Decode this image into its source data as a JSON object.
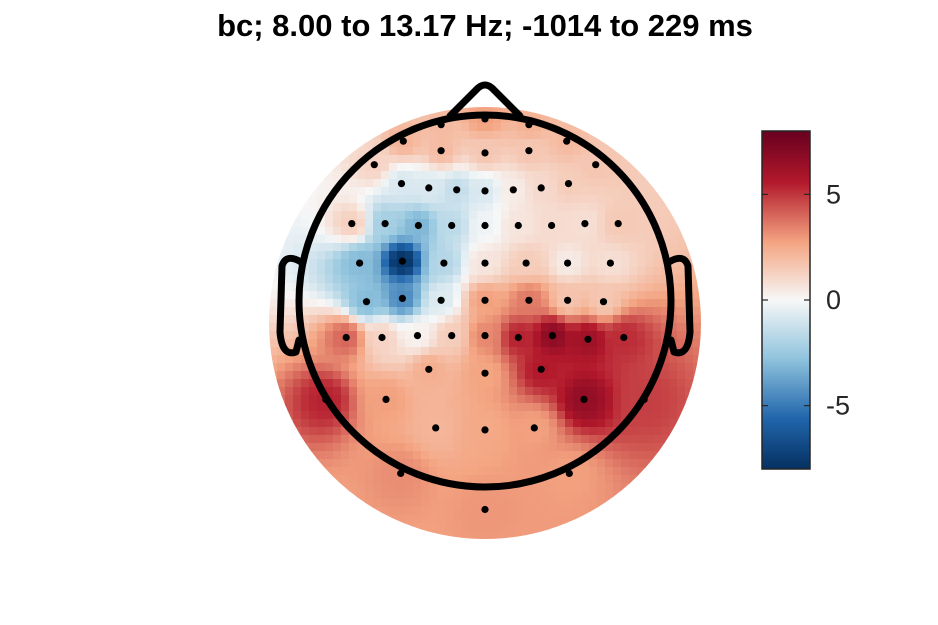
{
  "chart_data": {
    "type": "heatmap",
    "subtype": "eeg-topographic-map",
    "title": "bc; 8.00 to 13.17 Hz; -1014 to 229 ms",
    "colormap": "diverging red-white-blue (reversed)",
    "colors": {
      "min": "#053061",
      "low": "#2166ac",
      "midlow": "#92c5de",
      "zero": "#f7f7f7",
      "midhigh": "#f4a582",
      "high": "#b2182b",
      "max": "#67001f"
    },
    "clim": [
      -8,
      8
    ],
    "colorbar": {
      "ticks": [
        5,
        0,
        -5
      ],
      "tick_labels": [
        "5",
        "0",
        "-5"
      ],
      "position": "right"
    },
    "electrodes": [
      {
        "x": -0.236,
        "y": 0.948,
        "v": 2.0
      },
      {
        "x": 0.0,
        "y": 0.979,
        "v": 2.8
      },
      {
        "x": 0.236,
        "y": 0.948,
        "v": 2.3
      },
      {
        "x": -0.439,
        "y": 0.859,
        "v": 2.2
      },
      {
        "x": -0.236,
        "y": 0.808,
        "v": 2.0
      },
      {
        "x": 0.0,
        "y": 0.796,
        "v": 1.6
      },
      {
        "x": 0.236,
        "y": 0.808,
        "v": 1.6
      },
      {
        "x": 0.439,
        "y": 0.859,
        "v": 2.0
      },
      {
        "x": -0.595,
        "y": 0.733,
        "v": 1.2
      },
      {
        "x": 0.595,
        "y": 0.733,
        "v": 1.6
      },
      {
        "x": -0.449,
        "y": 0.631,
        "v": -0.8
      },
      {
        "x": -0.302,
        "y": 0.608,
        "v": -0.8
      },
      {
        "x": -0.152,
        "y": 0.598,
        "v": -1.4
      },
      {
        "x": 0.0,
        "y": 0.592,
        "v": -0.8
      },
      {
        "x": 0.152,
        "y": 0.598,
        "v": 0.4
      },
      {
        "x": 0.302,
        "y": 0.608,
        "v": 1.0
      },
      {
        "x": 0.449,
        "y": 0.631,
        "v": 1.4
      },
      {
        "x": -0.716,
        "y": 0.416,
        "v": 1.3
      },
      {
        "x": -0.537,
        "y": 0.416,
        "v": -2.2
      },
      {
        "x": -0.358,
        "y": 0.406,
        "v": -3.2
      },
      {
        "x": -0.179,
        "y": 0.406,
        "v": -1.6
      },
      {
        "x": 0.0,
        "y": 0.406,
        "v": -0.2
      },
      {
        "x": 0.179,
        "y": 0.406,
        "v": 0.6
      },
      {
        "x": 0.358,
        "y": 0.406,
        "v": 0.9
      },
      {
        "x": 0.537,
        "y": 0.416,
        "v": 0.8
      },
      {
        "x": 0.716,
        "y": 0.416,
        "v": 1.5
      },
      {
        "x": -0.674,
        "y": 0.204,
        "v": -3.0
      },
      {
        "x": -0.444,
        "y": 0.214,
        "v": -7.8
      },
      {
        "x": -0.221,
        "y": 0.204,
        "v": -1.8
      },
      {
        "x": 0.0,
        "y": 0.204,
        "v": 0.6
      },
      {
        "x": 0.221,
        "y": 0.204,
        "v": 1.4
      },
      {
        "x": 0.444,
        "y": 0.204,
        "v": 0.4
      },
      {
        "x": 0.674,
        "y": 0.204,
        "v": 0.8
      },
      {
        "x": -0.637,
        "y": -0.004,
        "v": -3.0
      },
      {
        "x": -0.444,
        "y": 0.014,
        "v": -4.5
      },
      {
        "x": -0.236,
        "y": 0.004,
        "v": -0.7
      },
      {
        "x": 0.0,
        "y": 0.004,
        "v": 2.8
      },
      {
        "x": 0.236,
        "y": 0.004,
        "v": 3.6
      },
      {
        "x": 0.444,
        "y": 0.004,
        "v": 1.7
      },
      {
        "x": 0.637,
        "y": -0.004,
        "v": 1.6
      },
      {
        "x": -0.746,
        "y": -0.196,
        "v": 4.0
      },
      {
        "x": -0.554,
        "y": -0.196,
        "v": 1.2
      },
      {
        "x": -0.363,
        "y": -0.186,
        "v": 0.2
      },
      {
        "x": -0.179,
        "y": -0.186,
        "v": 1.4
      },
      {
        "x": 0.0,
        "y": -0.186,
        "v": 3.3
      },
      {
        "x": 0.179,
        "y": -0.196,
        "v": 5.4
      },
      {
        "x": 0.363,
        "y": -0.186,
        "v": 6.8
      },
      {
        "x": 0.554,
        "y": -0.206,
        "v": 6.2
      },
      {
        "x": 0.746,
        "y": -0.196,
        "v": 5.2
      },
      {
        "x": -0.302,
        "y": -0.367,
        "v": 2.4
      },
      {
        "x": 0.0,
        "y": -0.388,
        "v": 2.7
      },
      {
        "x": 0.302,
        "y": -0.367,
        "v": 5.6
      },
      {
        "x": -0.856,
        "y": -0.529,
        "v": 5.4
      },
      {
        "x": -0.532,
        "y": -0.529,
        "v": 2.8
      },
      {
        "x": 0.532,
        "y": -0.529,
        "v": 6.6
      },
      {
        "x": 0.856,
        "y": -0.529,
        "v": 4.8
      },
      {
        "x": -0.265,
        "y": -0.682,
        "v": 2.2
      },
      {
        "x": 0.0,
        "y": -0.693,
        "v": 2.6
      },
      {
        "x": 0.265,
        "y": -0.682,
        "v": 2.8
      },
      {
        "x": -0.453,
        "y": -0.927,
        "v": 3.2
      },
      {
        "x": 0.453,
        "y": -0.927,
        "v": 2.8
      },
      {
        "x": 0.0,
        "y": -1.121,
        "v": 3.0
      }
    ]
  }
}
